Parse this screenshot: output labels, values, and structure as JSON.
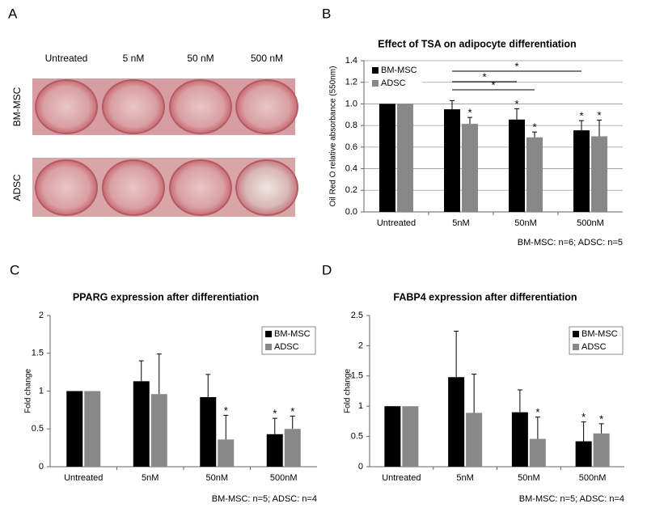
{
  "panel_a": {
    "panel": "A",
    "columns": [
      "Untreated",
      "5 nM",
      "50 nM",
      "500 nM"
    ],
    "rows": [
      "BM-MSC",
      "ADSC"
    ]
  },
  "chart_data": [
    {
      "type": "bar",
      "panel": "B",
      "title": "Effect of TSA on adipocyte differentiation",
      "y_label": "Oil Red O relative absorbance (550nm)",
      "footnote": "BM-MSC: n=6; ADSC: n=5",
      "categories": [
        "Untreated",
        "5nM",
        "50nM",
        "500nM"
      ],
      "series": [
        {
          "name": "BM-MSC",
          "color": "#000000",
          "values": [
            1.0,
            0.95,
            0.855,
            0.755
          ],
          "errors": [
            null,
            0.08,
            0.1,
            0.09
          ]
        },
        {
          "name": "ADSC",
          "color": "#888888",
          "values": [
            1.0,
            0.815,
            0.69,
            0.7
          ],
          "errors": [
            null,
            0.06,
            0.05,
            0.15
          ]
        }
      ],
      "ylim": [
        0,
        1.4
      ],
      "yticks": [
        {
          "value": 0,
          "label": "0.0"
        },
        0.2,
        0.4,
        0.6,
        0.8,
        {
          "value": 1,
          "label": "1.0"
        },
        1.2,
        1.4
      ],
      "grid": true,
      "legend": "upper left",
      "annotations": [
        {
          "series": 1,
          "index": 1,
          "text": "*"
        },
        {
          "series": 0,
          "index": 2,
          "text": "*"
        },
        {
          "series": 1,
          "index": 2,
          "text": "*"
        },
        {
          "series": 0,
          "index": 3,
          "text": "*"
        },
        {
          "series": 1,
          "index": 3,
          "text": "*"
        }
      ],
      "brackets": [
        {
          "from": {
            "series": 0,
            "index": 1
          },
          "to": {
            "series": 0,
            "index": 3
          },
          "text": "*"
        },
        {
          "from": {
            "series": 0,
            "index": 1
          },
          "to": {
            "series": 0,
            "index": 2
          },
          "text": "*"
        },
        {
          "from": {
            "series": 0,
            "index": 1
          },
          "to": {
            "series": 1,
            "index": 2
          },
          "text": "*"
        }
      ]
    },
    {
      "type": "bar",
      "panel": "C",
      "title": "PPARG expression after differentiation",
      "y_label": "Fold change",
      "footnote": "BM-MSC: n=5; ADSC: n=4",
      "categories": [
        "Untreated",
        "5nM",
        "50nM",
        "500nM"
      ],
      "series": [
        {
          "name": "BM-MSC",
          "color": "#000000",
          "values": [
            1,
            1.13,
            0.92,
            0.43
          ],
          "errors": [
            null,
            0.27,
            0.3,
            0.21
          ]
        },
        {
          "name": "ADSC",
          "color": "#888888",
          "values": [
            1,
            0.96,
            0.36,
            0.5
          ],
          "errors": [
            null,
            0.53,
            0.32,
            0.17
          ]
        }
      ],
      "ylim": [
        0,
        2
      ],
      "yticks": [
        0,
        0.5,
        1,
        1.5,
        2
      ],
      "grid": false,
      "legend": "upper right",
      "annotations": [
        {
          "series": 1,
          "index": 2,
          "text": "*"
        },
        {
          "series": 0,
          "index": 3,
          "text": "*"
        },
        {
          "series": 1,
          "index": 3,
          "text": "*"
        }
      ]
    },
    {
      "type": "bar",
      "panel": "D",
      "title": "FABP4  expression after differentiation",
      "y_label": "Fold change",
      "footnote": "BM-MSC: n=5; ADSC: n=4",
      "categories": [
        "Untreated",
        "5nM",
        "50nM",
        "500nM"
      ],
      "series": [
        {
          "name": "BM-MSC",
          "color": "#000000",
          "values": [
            1,
            1.48,
            0.9,
            0.42
          ],
          "errors": [
            null,
            0.76,
            0.37,
            0.32
          ]
        },
        {
          "name": "ADSC",
          "color": "#888888",
          "values": [
            1,
            0.89,
            0.46,
            0.55
          ],
          "errors": [
            null,
            0.64,
            0.36,
            0.16
          ]
        }
      ],
      "ylim": [
        0,
        2.5
      ],
      "yticks": [
        0,
        0.5,
        1,
        1.5,
        2,
        2.5
      ],
      "grid": false,
      "legend": "upper right",
      "annotations": [
        {
          "series": 1,
          "index": 2,
          "text": "*"
        },
        {
          "series": 0,
          "index": 3,
          "text": "*"
        },
        {
          "series": 1,
          "index": 3,
          "text": "*"
        }
      ]
    }
  ]
}
